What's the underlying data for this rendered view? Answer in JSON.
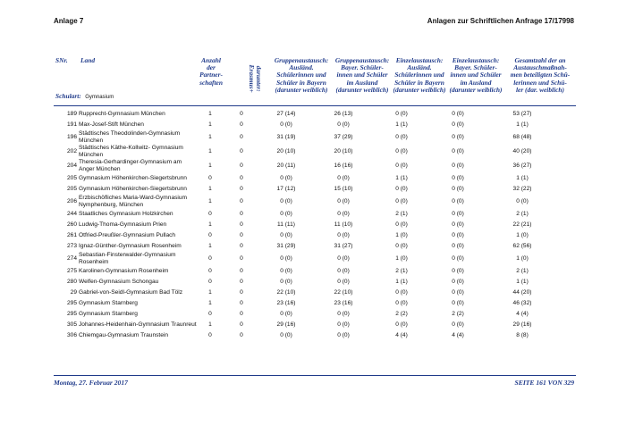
{
  "header": {
    "left": "Anlage 7",
    "right": "Anlagen zur Schriftlichen Anfrage 17/17998"
  },
  "table": {
    "columns": {
      "snr": "SNr.",
      "land": "Land",
      "schulart_label": "Schulart:",
      "schulart": "Gymnasium",
      "partner": [
        "Anzahl",
        "der",
        "Partner-",
        "schaften"
      ],
      "erasmus": [
        "darunter:",
        "Erasmus+"
      ],
      "group_in": [
        "Gruppenaustausch:",
        "Ausländ.",
        "Schülerinnen und",
        "Schüler in Bayern",
        "(darunter weiblich)"
      ],
      "group_out": [
        "Gruppenaustausch:",
        "Bayer. Schüler-",
        "innen und Schüler",
        "im Ausland",
        "(darunter weiblich)"
      ],
      "single_in": [
        "Einzelaustausch:",
        "Ausländ.",
        "Schülerinnen und",
        "Schüler in Bayern",
        "(darunter weiblich)"
      ],
      "single_out": [
        "Einzelaustausch:",
        "Bayer. Schüler-",
        "innen und Schüler",
        "im Ausland",
        "(darunter weiblich)"
      ],
      "total": [
        "Gesamtzahl der an",
        "Austauschmaßnah-",
        "men beteiligten Schü-",
        "lerinnen und Schü-",
        "ler (dar. weiblich)"
      ]
    },
    "rows": [
      [
        "189",
        "Rupprecht-Gymnasium München",
        "1",
        "0",
        "27 (14)",
        "26 (13)",
        "0 (0)",
        "0 (0)",
        "53 (27)"
      ],
      [
        "191",
        "Max-Josef-Stift München",
        "1",
        "0",
        "0 (0)",
        "0 (0)",
        "1 (1)",
        "0 (0)",
        "1 (1)"
      ],
      [
        "196",
        "Städtisches Theodolinden-Gymnasium München",
        "1",
        "0",
        "31 (19)",
        "37 (29)",
        "0 (0)",
        "0 (0)",
        "68 (48)"
      ],
      [
        "202",
        "Städtisches Käthe-Kollwitz- Gymnasium München",
        "1",
        "0",
        "20 (10)",
        "20 (10)",
        "0 (0)",
        "0 (0)",
        "40 (20)"
      ],
      [
        "204",
        "Theresia-Gerhardinger-Gymnasium am Anger München",
        "1",
        "0",
        "20 (11)",
        "16 (16)",
        "0 (0)",
        "0 (0)",
        "36 (27)"
      ],
      [
        "205",
        "Gymnasium Höhenkirchen-Siegertsbrunn",
        "0",
        "0",
        "0 (0)",
        "0 (0)",
        "1 (1)",
        "0 (0)",
        "1 (1)"
      ],
      [
        "205",
        "Gymnasium Höhenkirchen-Siegertsbrunn",
        "1",
        "0",
        "17 (12)",
        "15 (10)",
        "0 (0)",
        "0 (0)",
        "32 (22)"
      ],
      [
        "206",
        "Erzbischöfliches Maria-Ward-Gymnasium Nymphenburg, München",
        "1",
        "0",
        "0 (0)",
        "0 (0)",
        "0 (0)",
        "0 (0)",
        "0 (0)"
      ],
      [
        "244",
        "Staatliches Gymnasium Holzkirchen",
        "0",
        "0",
        "0 (0)",
        "0 (0)",
        "2 (1)",
        "0 (0)",
        "2 (1)"
      ],
      [
        "260",
        "Ludwig-Thoma-Gymnasium Prien",
        "1",
        "0",
        "11 (11)",
        "11 (10)",
        "0 (0)",
        "0 (0)",
        "22 (21)"
      ],
      [
        "261",
        "Otfried-Preußler-Gymnasium Pullach",
        "0",
        "0",
        "0 (0)",
        "0 (0)",
        "1 (0)",
        "0 (0)",
        "1 (0)"
      ],
      [
        "273",
        "Ignaz-Günther-Gymnasium Rosenheim",
        "1",
        "0",
        "31 (29)",
        "31 (27)",
        "0 (0)",
        "0 (0)",
        "62 (56)"
      ],
      [
        "274",
        "Sebastian-Finsterwalder-Gymnasium Rosenheim",
        "0",
        "0",
        "0 (0)",
        "0 (0)",
        "1 (0)",
        "0 (0)",
        "1 (0)"
      ],
      [
        "275",
        "Karolinen-Gymnasium Rosenheim",
        "0",
        "0",
        "0 (0)",
        "0 (0)",
        "2 (1)",
        "0 (0)",
        "2 (1)"
      ],
      [
        "280",
        "Welfen-Gymnasium Schongau",
        "0",
        "0",
        "0 (0)",
        "0 (0)",
        "1 (1)",
        "0 (0)",
        "1 (1)"
      ],
      [
        "29",
        "Gabriel-von-Seidl-Gymnasium Bad Tölz",
        "1",
        "0",
        "22 (10)",
        "22 (10)",
        "0 (0)",
        "0 (0)",
        "44 (20)"
      ],
      [
        "295",
        "Gymnasium Starnberg",
        "1",
        "0",
        "23 (16)",
        "23 (16)",
        "0 (0)",
        "0 (0)",
        "46 (32)"
      ],
      [
        "295",
        "Gymnasium Starnberg",
        "0",
        "0",
        "0 (0)",
        "0 (0)",
        "2 (2)",
        "2 (2)",
        "4 (4)"
      ],
      [
        "305",
        "Johannes-Heidenhain-Gymnasium Traunreut",
        "1",
        "0",
        "29 (16)",
        "0 (0)",
        "0 (0)",
        "0 (0)",
        "29 (16)"
      ],
      [
        "306",
        "Chiemgau-Gymnasium Traunstein",
        "0",
        "0",
        "0 (0)",
        "0 (0)",
        "4 (4)",
        "4 (4)",
        "8 (8)"
      ]
    ]
  },
  "footer": {
    "date": "Montag, 27. Februar 2017",
    "page": "SEITE 161 VON 329"
  }
}
